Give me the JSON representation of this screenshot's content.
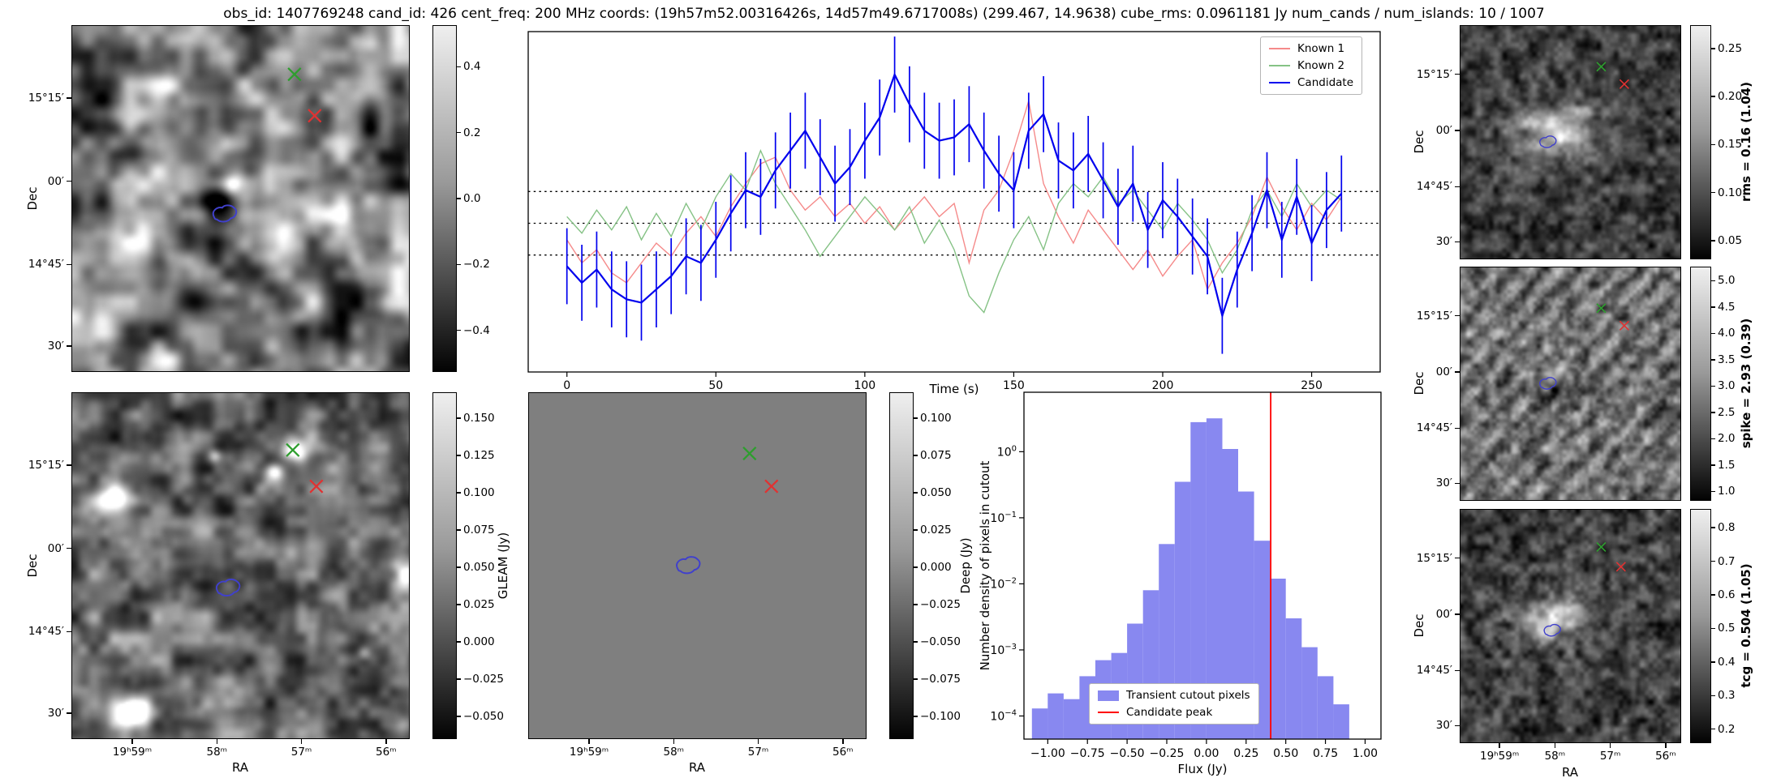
{
  "title": "obs_id: 1407769248 cand_id: 426 cent_freq: 200 MHz coords: (19h57m52.00316426s, 14d57m49.6717008s) (299.467, 14.9638) cube_rms: 0.0961181 Jy num_cands / num_islands: 10 / 1007",
  "colors": {
    "known1_line": "#f58a8a",
    "known2_line": "#85c285",
    "candidate_line": "#0000ee",
    "histogram_bar": "#8888f0",
    "candidate_peak_line": "#ff0000",
    "green_x_marker": "#2e9e2e",
    "red_x_marker": "#e03232",
    "contour_blue": "#4040cc"
  },
  "axes": {
    "dec_label": "Dec",
    "ra_label": "RA",
    "dec_ticks": [
      "15°15′",
      "00′",
      "14°45′",
      "30′"
    ],
    "ra_ticks": [
      "19ʰ59ᵐ",
      "58ᵐ",
      "57ᵐ",
      "56ᵐ"
    ]
  },
  "panels": {
    "transient_cube": {
      "colorbar_label": "",
      "colorbar_ticks": [
        "0.4",
        "0.2",
        "0.0",
        "−0.2",
        "−0.4"
      ]
    },
    "gleam": {
      "colorbar_label": "GLEAM (Jy)",
      "colorbar_ticks": [
        "0.150",
        "0.125",
        "0.100",
        "0.075",
        "0.050",
        "0.025",
        "0.000",
        "−0.025",
        "−0.050"
      ]
    },
    "deep": {
      "colorbar_label": "Deep (Jy)",
      "colorbar_ticks": [
        "0.100",
        "0.075",
        "0.050",
        "0.025",
        "0.000",
        "−0.025",
        "−0.050",
        "−0.075",
        "−0.100"
      ]
    },
    "rms": {
      "colorbar_label": "rms = 0.16 (1.04)",
      "colorbar_ticks": [
        "0.25",
        "0.20",
        "0.15",
        "0.10",
        "0.05"
      ]
    },
    "spike": {
      "colorbar_label": "spike = 2.93 (0.39)",
      "colorbar_ticks": [
        "5.0",
        "4.5",
        "4.0",
        "3.5",
        "3.0",
        "2.5",
        "2.0",
        "1.5",
        "1.0"
      ]
    },
    "tcg": {
      "colorbar_label": "tcg = 0.504 (1.05)",
      "colorbar_ticks": [
        "0.8",
        "0.7",
        "0.6",
        "0.5",
        "0.4",
        "0.3",
        "0.2"
      ]
    }
  },
  "chart_data": [
    {
      "type": "line",
      "title": "",
      "xlabel": "Time (s)",
      "ylabel": "",
      "xlim": [
        -13,
        273
      ],
      "ylim": [
        -0.45,
        0.58
      ],
      "xticks": [
        0,
        50,
        100,
        150,
        200,
        250
      ],
      "hlines": [
        0.0961181,
        0.0,
        -0.0961181
      ],
      "legend_position": "upper right",
      "x": [
        0,
        5,
        10,
        15,
        20,
        25,
        30,
        35,
        40,
        45,
        50,
        55,
        60,
        65,
        70,
        75,
        80,
        85,
        90,
        95,
        100,
        105,
        110,
        115,
        120,
        125,
        130,
        135,
        140,
        145,
        150,
        155,
        160,
        165,
        170,
        175,
        180,
        185,
        190,
        195,
        200,
        205,
        210,
        215,
        220,
        225,
        230,
        235,
        240,
        245,
        250,
        255,
        260
      ],
      "series": [
        {
          "name": "Known 1",
          "color": "#f58a8a",
          "lw": 1.4,
          "values": [
            -0.05,
            -0.12,
            -0.08,
            -0.15,
            -0.18,
            -0.12,
            -0.06,
            -0.1,
            -0.03,
            0.02,
            -0.04,
            0.05,
            0.12,
            0.18,
            0.2,
            0.1,
            0.04,
            0.08,
            0.02,
            0.06,
            0.0,
            0.05,
            -0.02,
            0.03,
            0.08,
            0.02,
            0.06,
            -0.12,
            0.04,
            0.1,
            0.22,
            0.37,
            0.12,
            0.02,
            -0.06,
            0.04,
            -0.02,
            -0.08,
            -0.14,
            -0.08,
            -0.16,
            -0.1,
            -0.05,
            -0.2,
            -0.12,
            -0.06,
            0.02,
            0.14,
            0.05,
            -0.02,
            0.06,
            0.01,
            0.08
          ]
        },
        {
          "name": "Known 2",
          "color": "#85c285",
          "lw": 1.4,
          "values": [
            0.02,
            -0.03,
            0.04,
            -0.02,
            0.05,
            -0.05,
            0.03,
            -0.04,
            0.06,
            -0.02,
            0.08,
            0.15,
            0.1,
            0.22,
            0.12,
            0.05,
            -0.02,
            -0.1,
            -0.04,
            0.02,
            0.08,
            0.03,
            -0.02,
            0.05,
            -0.06,
            0.01,
            -0.08,
            -0.22,
            -0.27,
            -0.15,
            -0.05,
            0.02,
            -0.08,
            0.06,
            0.12,
            0.08,
            0.14,
            0.06,
            0.1,
            0.04,
            -0.02,
            0.06,
            0.01,
            -0.05,
            -0.15,
            -0.08,
            0.04,
            0.1,
            0.02,
            0.12,
            0.05,
            0.1,
            0.07
          ]
        },
        {
          "name": "Candidate",
          "color": "#0000ee",
          "lw": 2.2,
          "yerr": 0.115,
          "values": [
            -0.13,
            -0.18,
            -0.14,
            -0.2,
            -0.23,
            -0.24,
            -0.2,
            -0.16,
            -0.1,
            -0.12,
            -0.05,
            0.03,
            0.1,
            0.08,
            0.16,
            0.22,
            0.28,
            0.2,
            0.12,
            0.17,
            0.25,
            0.32,
            0.45,
            0.36,
            0.28,
            0.25,
            0.26,
            0.3,
            0.22,
            0.15,
            0.1,
            0.28,
            0.33,
            0.19,
            0.16,
            0.21,
            0.13,
            0.05,
            0.12,
            -0.02,
            0.07,
            0.02,
            -0.04,
            -0.1,
            -0.28,
            -0.14,
            -0.03,
            0.1,
            -0.05,
            0.08,
            -0.06,
            0.04,
            0.09
          ]
        }
      ]
    },
    {
      "type": "bar",
      "subtype": "histogram",
      "xlabel": "Flux (Jy)",
      "ylabel": "Number density of pixels in cutout",
      "yscale": "log",
      "xlim": [
        -1.15,
        1.1
      ],
      "ylim_log_exponents": [
        -4.35,
        0.9
      ],
      "bar_color": "#8888f0",
      "bin_edges": [
        -1.1,
        -1.0,
        -0.9,
        -0.8,
        -0.7,
        -0.6,
        -0.5,
        -0.4,
        -0.3,
        -0.2,
        -0.1,
        0.0,
        0.1,
        0.2,
        0.3,
        0.4,
        0.5,
        0.6,
        0.7,
        0.8,
        0.9
      ],
      "densities": [
        0.00013,
        0.00022,
        0.00018,
        0.0004,
        0.0007,
        0.0009,
        0.0025,
        0.008,
        0.04,
        0.35,
        2.8,
        3.2,
        1.1,
        0.25,
        0.045,
        0.012,
        0.003,
        0.0011,
        0.0004,
        0.00015
      ],
      "vline": {
        "x": 0.405,
        "color": "#ff0000",
        "label": "Candidate peak"
      },
      "legend": [
        "Transient cutout pixels",
        "Candidate peak"
      ],
      "legend_position": "lower center",
      "xtick_vals": [
        -1.0,
        -0.75,
        -0.5,
        -0.25,
        0.0,
        0.25,
        0.5,
        0.75,
        1.0
      ],
      "xtick_labels": [
        "−1.00",
        "−0.75",
        "−0.50",
        "−0.25",
        "0.00",
        "0.25",
        "0.50",
        "0.75",
        "1.00"
      ],
      "ytick_exponents": [
        0,
        -1,
        -2,
        -3,
        -4
      ]
    }
  ]
}
